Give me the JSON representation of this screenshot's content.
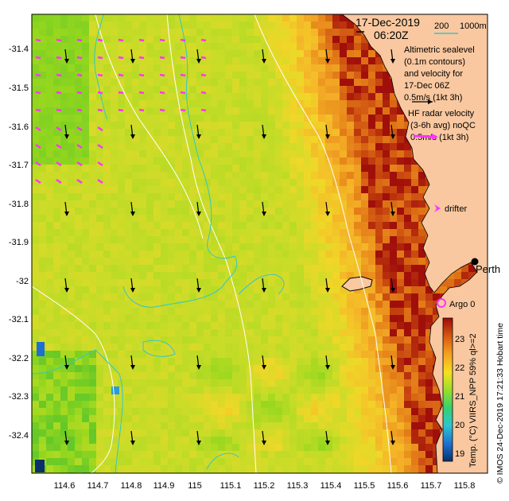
{
  "map": {
    "date": "17-Dec-2019",
    "time": "06:20Z",
    "isobath_200_label": "200",
    "isobath_1000_label": "1000m",
    "altimetry_text": [
      "Altimetric sealevel",
      "(0.1m contours)",
      "and velocity for",
      "17-Dec 06Z",
      "0.5m/s (1kt 3h)"
    ],
    "hf_radar_text": [
      "HF radar velocity",
      "(3-6h avg) noQC",
      "0.5m/s (1kt 3h)"
    ],
    "drifter_label": "drifter",
    "city_label": "Perth",
    "argo_label": "Argo 0",
    "colorbar": {
      "label": "Temp. (°C) VIIRS_NPP 59% ql>=2",
      "ticks": [
        "23",
        "22",
        "21",
        "20",
        "19"
      ],
      "values": [
        23,
        22,
        21,
        20,
        19
      ]
    },
    "credit": "© IMOS 24-Dec-2019 17:21:33 Hobart time",
    "lat_ticks": [
      "-31.4",
      "-31.5",
      "-31.6",
      "-31.7",
      "-31.8",
      "-31.9",
      "-32",
      "-32.1",
      "-32.2",
      "-32.3",
      "-32.4"
    ],
    "lon_ticks": [
      "114.6",
      "114.7",
      "114.8",
      "114.9",
      "115",
      "115.1",
      "115.2",
      "115.3",
      "115.4",
      "115.5",
      "115.6",
      "115.7",
      "115.8"
    ],
    "colors": {
      "land": "#f9c8a0",
      "isobath_200": "#ffffff",
      "isobath_1000": "#33c7c7",
      "hf_vector": "#ff33ff",
      "altimetry_vector": "#000000",
      "argo": "#ff33ff"
    }
  }
}
